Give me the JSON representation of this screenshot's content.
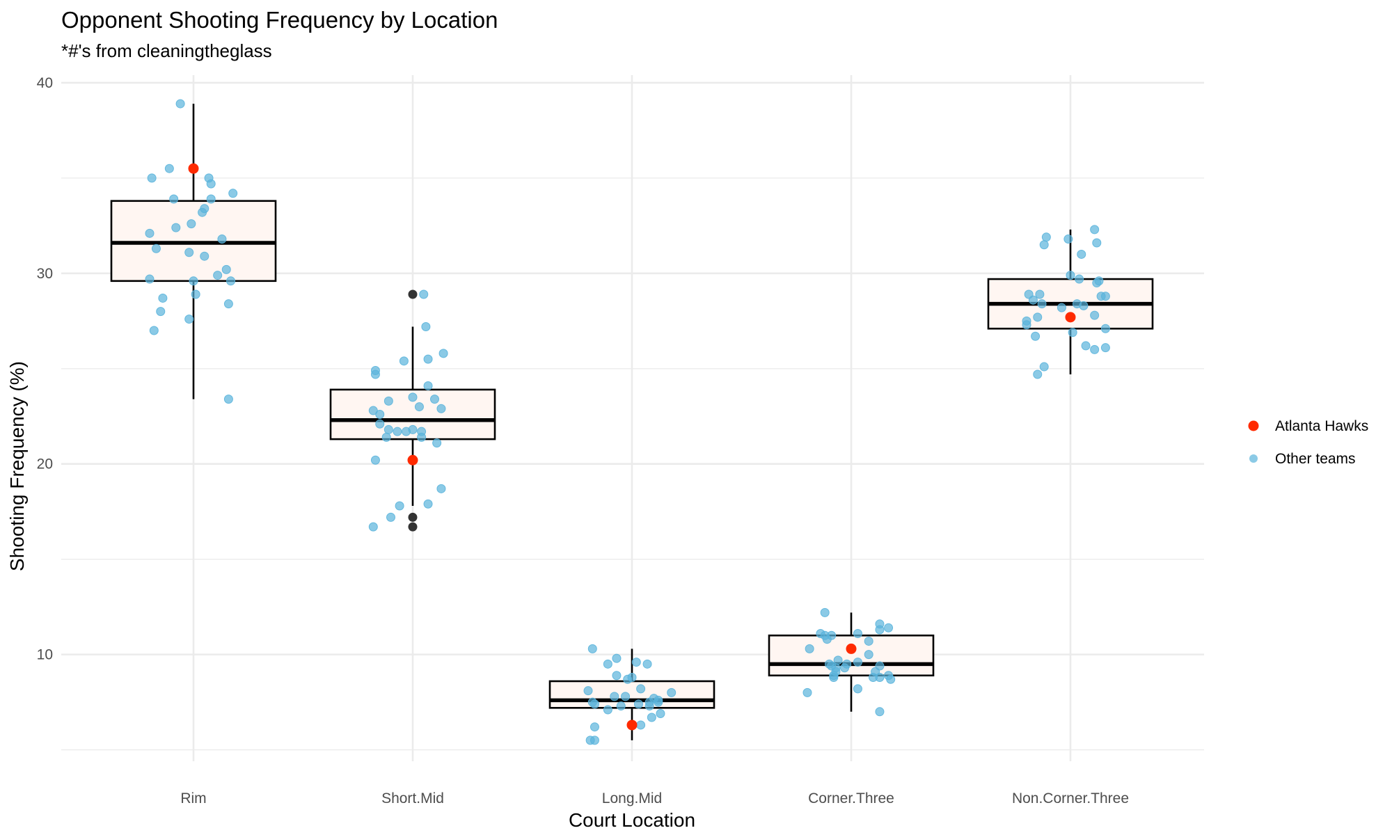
{
  "chart_data": {
    "type": "box",
    "title": "Opponent Shooting Frequency by Location",
    "subtitle": "*#'s from cleaningtheglass",
    "xlabel": "Court Location",
    "ylabel": "Shooting Frequency (%)",
    "ylim": [
      4.4,
      40.4
    ],
    "yticks": [
      10,
      20,
      30,
      40
    ],
    "grid": true,
    "legend_position": "right",
    "categories": [
      "Rim",
      "Short.Mid",
      "Long.Mid",
      "Corner.Three",
      "Non.Corner.Three"
    ],
    "boxes": [
      {
        "category": "Rim",
        "lower_whisker": 23.4,
        "q1": 29.6,
        "median": 31.6,
        "q3": 33.8,
        "upper_whisker": 38.9,
        "outliers": []
      },
      {
        "category": "Short.Mid",
        "lower_whisker": 17.8,
        "q1": 21.3,
        "median": 22.3,
        "q3": 23.9,
        "upper_whisker": 27.2,
        "outliers": [
          28.9,
          17.2,
          16.7
        ]
      },
      {
        "category": "Long.Mid",
        "lower_whisker": 5.5,
        "q1": 7.2,
        "median": 7.6,
        "q3": 8.6,
        "upper_whisker": 10.3,
        "outliers": []
      },
      {
        "category": "Corner.Three",
        "lower_whisker": 7.0,
        "q1": 8.9,
        "median": 9.5,
        "q3": 11.0,
        "upper_whisker": 12.2,
        "outliers": []
      },
      {
        "category": "Non.Corner.Three",
        "lower_whisker": 24.7,
        "q1": 27.1,
        "median": 28.4,
        "q3": 29.7,
        "upper_whisker": 32.3,
        "outliers": []
      }
    ],
    "series": [
      {
        "name": "Atlanta Hawks",
        "color": "#ff2a00",
        "points": [
          {
            "category": "Rim",
            "offset": 0.0,
            "y": 35.5
          },
          {
            "category": "Short.Mid",
            "offset": 0.0,
            "y": 20.2
          },
          {
            "category": "Long.Mid",
            "offset": 0.0,
            "y": 6.3
          },
          {
            "category": "Corner.Three",
            "offset": 0.0,
            "y": 10.3
          },
          {
            "category": "Non.Corner.Three",
            "offset": 0.0,
            "y": 27.7
          }
        ]
      },
      {
        "name": "Other teams",
        "color": "#5ab4dc",
        "points": [
          {
            "category": "Rim",
            "offset": -0.06,
            "y": 38.9
          },
          {
            "category": "Rim",
            "offset": -0.11,
            "y": 35.5
          },
          {
            "category": "Rim",
            "offset": -0.19,
            "y": 35.0
          },
          {
            "category": "Rim",
            "offset": 0.07,
            "y": 35.0
          },
          {
            "category": "Rim",
            "offset": 0.08,
            "y": 34.7
          },
          {
            "category": "Rim",
            "offset": 0.18,
            "y": 34.2
          },
          {
            "category": "Rim",
            "offset": -0.09,
            "y": 33.9
          },
          {
            "category": "Rim",
            "offset": 0.08,
            "y": 33.9
          },
          {
            "category": "Rim",
            "offset": 0.05,
            "y": 33.4
          },
          {
            "category": "Rim",
            "offset": 0.04,
            "y": 33.2
          },
          {
            "category": "Rim",
            "offset": -0.01,
            "y": 32.6
          },
          {
            "category": "Rim",
            "offset": -0.08,
            "y": 32.4
          },
          {
            "category": "Rim",
            "offset": -0.2,
            "y": 32.1
          },
          {
            "category": "Rim",
            "offset": 0.13,
            "y": 31.8
          },
          {
            "category": "Rim",
            "offset": -0.17,
            "y": 31.3
          },
          {
            "category": "Rim",
            "offset": -0.02,
            "y": 31.1
          },
          {
            "category": "Rim",
            "offset": 0.05,
            "y": 30.9
          },
          {
            "category": "Rim",
            "offset": 0.15,
            "y": 30.2
          },
          {
            "category": "Rim",
            "offset": 0.11,
            "y": 29.9
          },
          {
            "category": "Rim",
            "offset": -0.2,
            "y": 29.7
          },
          {
            "category": "Rim",
            "offset": 0.0,
            "y": 29.6
          },
          {
            "category": "Rim",
            "offset": 0.17,
            "y": 29.6
          },
          {
            "category": "Rim",
            "offset": 0.01,
            "y": 28.9
          },
          {
            "category": "Rim",
            "offset": -0.14,
            "y": 28.7
          },
          {
            "category": "Rim",
            "offset": 0.16,
            "y": 28.4
          },
          {
            "category": "Rim",
            "offset": -0.15,
            "y": 28.0
          },
          {
            "category": "Rim",
            "offset": -0.02,
            "y": 27.6
          },
          {
            "category": "Rim",
            "offset": -0.18,
            "y": 27.0
          },
          {
            "category": "Rim",
            "offset": 0.16,
            "y": 23.4
          },
          {
            "category": "Short.Mid",
            "offset": 0.05,
            "y": 28.9
          },
          {
            "category": "Short.Mid",
            "offset": 0.06,
            "y": 27.2
          },
          {
            "category": "Short.Mid",
            "offset": 0.14,
            "y": 25.8
          },
          {
            "category": "Short.Mid",
            "offset": 0.07,
            "y": 25.5
          },
          {
            "category": "Short.Mid",
            "offset": -0.04,
            "y": 25.4
          },
          {
            "category": "Short.Mid",
            "offset": -0.17,
            "y": 24.9
          },
          {
            "category": "Short.Mid",
            "offset": -0.17,
            "y": 24.7
          },
          {
            "category": "Short.Mid",
            "offset": 0.07,
            "y": 24.1
          },
          {
            "category": "Short.Mid",
            "offset": 0.0,
            "y": 23.5
          },
          {
            "category": "Short.Mid",
            "offset": 0.1,
            "y": 23.4
          },
          {
            "category": "Short.Mid",
            "offset": -0.11,
            "y": 23.3
          },
          {
            "category": "Short.Mid",
            "offset": 0.03,
            "y": 23.0
          },
          {
            "category": "Short.Mid",
            "offset": 0.13,
            "y": 22.9
          },
          {
            "category": "Short.Mid",
            "offset": -0.18,
            "y": 22.8
          },
          {
            "category": "Short.Mid",
            "offset": -0.15,
            "y": 22.6
          },
          {
            "category": "Short.Mid",
            "offset": -0.15,
            "y": 22.1
          },
          {
            "category": "Short.Mid",
            "offset": -0.11,
            "y": 21.8
          },
          {
            "category": "Short.Mid",
            "offset": 0.0,
            "y": 21.8
          },
          {
            "category": "Short.Mid",
            "offset": -0.03,
            "y": 21.7
          },
          {
            "category": "Short.Mid",
            "offset": -0.07,
            "y": 21.7
          },
          {
            "category": "Short.Mid",
            "offset": 0.04,
            "y": 21.7
          },
          {
            "category": "Short.Mid",
            "offset": -0.12,
            "y": 21.4
          },
          {
            "category": "Short.Mid",
            "offset": 0.04,
            "y": 21.4
          },
          {
            "category": "Short.Mid",
            "offset": 0.11,
            "y": 21.1
          },
          {
            "category": "Short.Mid",
            "offset": -0.17,
            "y": 20.2
          },
          {
            "category": "Short.Mid",
            "offset": 0.13,
            "y": 18.7
          },
          {
            "category": "Short.Mid",
            "offset": 0.07,
            "y": 17.9
          },
          {
            "category": "Short.Mid",
            "offset": -0.06,
            "y": 17.8
          },
          {
            "category": "Short.Mid",
            "offset": -0.1,
            "y": 17.2
          },
          {
            "category": "Short.Mid",
            "offset": -0.18,
            "y": 16.7
          },
          {
            "category": "Long.Mid",
            "offset": -0.18,
            "y": 10.3
          },
          {
            "category": "Long.Mid",
            "offset": -0.07,
            "y": 9.8
          },
          {
            "category": "Long.Mid",
            "offset": 0.02,
            "y": 9.6
          },
          {
            "category": "Long.Mid",
            "offset": -0.11,
            "y": 9.5
          },
          {
            "category": "Long.Mid",
            "offset": 0.07,
            "y": 9.5
          },
          {
            "category": "Long.Mid",
            "offset": -0.07,
            "y": 8.9
          },
          {
            "category": "Long.Mid",
            "offset": 0.0,
            "y": 8.8
          },
          {
            "category": "Long.Mid",
            "offset": -0.02,
            "y": 8.7
          },
          {
            "category": "Long.Mid",
            "offset": 0.04,
            "y": 8.2
          },
          {
            "category": "Long.Mid",
            "offset": -0.2,
            "y": 8.1
          },
          {
            "category": "Long.Mid",
            "offset": 0.18,
            "y": 8.0
          },
          {
            "category": "Long.Mid",
            "offset": -0.08,
            "y": 7.8
          },
          {
            "category": "Long.Mid",
            "offset": -0.03,
            "y": 7.8
          },
          {
            "category": "Long.Mid",
            "offset": 0.1,
            "y": 7.7
          },
          {
            "category": "Long.Mid",
            "offset": 0.12,
            "y": 7.6
          },
          {
            "category": "Long.Mid",
            "offset": -0.18,
            "y": 7.5
          },
          {
            "category": "Long.Mid",
            "offset": 0.08,
            "y": 7.5
          },
          {
            "category": "Long.Mid",
            "offset": 0.12,
            "y": 7.5
          },
          {
            "category": "Long.Mid",
            "offset": -0.17,
            "y": 7.4
          },
          {
            "category": "Long.Mid",
            "offset": 0.03,
            "y": 7.4
          },
          {
            "category": "Long.Mid",
            "offset": -0.05,
            "y": 7.3
          },
          {
            "category": "Long.Mid",
            "offset": 0.08,
            "y": 7.3
          },
          {
            "category": "Long.Mid",
            "offset": -0.11,
            "y": 7.1
          },
          {
            "category": "Long.Mid",
            "offset": 0.13,
            "y": 6.9
          },
          {
            "category": "Long.Mid",
            "offset": 0.09,
            "y": 6.7
          },
          {
            "category": "Long.Mid",
            "offset": 0.04,
            "y": 6.3
          },
          {
            "category": "Long.Mid",
            "offset": -0.17,
            "y": 6.2
          },
          {
            "category": "Long.Mid",
            "offset": -0.17,
            "y": 5.5
          },
          {
            "category": "Long.Mid",
            "offset": -0.19,
            "y": 5.5
          },
          {
            "category": "Corner.Three",
            "offset": -0.12,
            "y": 12.2
          },
          {
            "category": "Corner.Three",
            "offset": 0.13,
            "y": 11.6
          },
          {
            "category": "Corner.Three",
            "offset": 0.17,
            "y": 11.4
          },
          {
            "category": "Corner.Three",
            "offset": 0.13,
            "y": 11.3
          },
          {
            "category": "Corner.Three",
            "offset": -0.14,
            "y": 11.1
          },
          {
            "category": "Corner.Three",
            "offset": 0.03,
            "y": 11.1
          },
          {
            "category": "Corner.Three",
            "offset": -0.12,
            "y": 11.0
          },
          {
            "category": "Corner.Three",
            "offset": -0.09,
            "y": 11.0
          },
          {
            "category": "Corner.Three",
            "offset": -0.11,
            "y": 10.8
          },
          {
            "category": "Corner.Three",
            "offset": 0.08,
            "y": 10.7
          },
          {
            "category": "Corner.Three",
            "offset": -0.19,
            "y": 10.3
          },
          {
            "category": "Corner.Three",
            "offset": 0.08,
            "y": 10.0
          },
          {
            "category": "Corner.Three",
            "offset": -0.06,
            "y": 9.7
          },
          {
            "category": "Corner.Three",
            "offset": 0.03,
            "y": 9.6
          },
          {
            "category": "Corner.Three",
            "offset": -0.1,
            "y": 9.5
          },
          {
            "category": "Corner.Three",
            "offset": -0.02,
            "y": 9.5
          },
          {
            "category": "Corner.Three",
            "offset": -0.09,
            "y": 9.4
          },
          {
            "category": "Corner.Three",
            "offset": 0.13,
            "y": 9.4
          },
          {
            "category": "Corner.Three",
            "offset": -0.07,
            "y": 9.3
          },
          {
            "category": "Corner.Three",
            "offset": -0.03,
            "y": 9.3
          },
          {
            "category": "Corner.Three",
            "offset": -0.07,
            "y": 9.1
          },
          {
            "category": "Corner.Three",
            "offset": 0.11,
            "y": 9.1
          },
          {
            "category": "Corner.Three",
            "offset": -0.08,
            "y": 8.9
          },
          {
            "category": "Corner.Three",
            "offset": 0.17,
            "y": 8.9
          },
          {
            "category": "Corner.Three",
            "offset": -0.08,
            "y": 8.8
          },
          {
            "category": "Corner.Three",
            "offset": 0.1,
            "y": 8.8
          },
          {
            "category": "Corner.Three",
            "offset": 0.13,
            "y": 8.8
          },
          {
            "category": "Corner.Three",
            "offset": 0.18,
            "y": 8.7
          },
          {
            "category": "Corner.Three",
            "offset": 0.03,
            "y": 8.2
          },
          {
            "category": "Corner.Three",
            "offset": -0.2,
            "y": 8.0
          },
          {
            "category": "Corner.Three",
            "offset": 0.13,
            "y": 7.0
          },
          {
            "category": "Non.Corner.Three",
            "offset": 0.11,
            "y": 32.3
          },
          {
            "category": "Non.Corner.Three",
            "offset": -0.11,
            "y": 31.9
          },
          {
            "category": "Non.Corner.Three",
            "offset": -0.01,
            "y": 31.8
          },
          {
            "category": "Non.Corner.Three",
            "offset": 0.12,
            "y": 31.6
          },
          {
            "category": "Non.Corner.Three",
            "offset": -0.12,
            "y": 31.5
          },
          {
            "category": "Non.Corner.Three",
            "offset": 0.05,
            "y": 31.0
          },
          {
            "category": "Non.Corner.Three",
            "offset": 0.0,
            "y": 29.9
          },
          {
            "category": "Non.Corner.Three",
            "offset": 0.04,
            "y": 29.7
          },
          {
            "category": "Non.Corner.Three",
            "offset": 0.13,
            "y": 29.6
          },
          {
            "category": "Non.Corner.Three",
            "offset": 0.12,
            "y": 29.5
          },
          {
            "category": "Non.Corner.Three",
            "offset": -0.19,
            "y": 28.9
          },
          {
            "category": "Non.Corner.Three",
            "offset": -0.14,
            "y": 28.9
          },
          {
            "category": "Non.Corner.Three",
            "offset": 0.14,
            "y": 28.8
          },
          {
            "category": "Non.Corner.Three",
            "offset": 0.16,
            "y": 28.8
          },
          {
            "category": "Non.Corner.Three",
            "offset": -0.17,
            "y": 28.6
          },
          {
            "category": "Non.Corner.Three",
            "offset": -0.13,
            "y": 28.4
          },
          {
            "category": "Non.Corner.Three",
            "offset": 0.03,
            "y": 28.4
          },
          {
            "category": "Non.Corner.Three",
            "offset": 0.06,
            "y": 28.3
          },
          {
            "category": "Non.Corner.Three",
            "offset": -0.04,
            "y": 28.2
          },
          {
            "category": "Non.Corner.Three",
            "offset": 0.11,
            "y": 27.8
          },
          {
            "category": "Non.Corner.Three",
            "offset": -0.15,
            "y": 27.7
          },
          {
            "category": "Non.Corner.Three",
            "offset": -0.2,
            "y": 27.5
          },
          {
            "category": "Non.Corner.Three",
            "offset": -0.2,
            "y": 27.3
          },
          {
            "category": "Non.Corner.Three",
            "offset": 0.16,
            "y": 27.1
          },
          {
            "category": "Non.Corner.Three",
            "offset": 0.01,
            "y": 26.9
          },
          {
            "category": "Non.Corner.Three",
            "offset": -0.16,
            "y": 26.7
          },
          {
            "category": "Non.Corner.Three",
            "offset": 0.07,
            "y": 26.2
          },
          {
            "category": "Non.Corner.Three",
            "offset": 0.16,
            "y": 26.1
          },
          {
            "category": "Non.Corner.Three",
            "offset": 0.11,
            "y": 26.0
          },
          {
            "category": "Non.Corner.Three",
            "offset": -0.12,
            "y": 25.1
          },
          {
            "category": "Non.Corner.Three",
            "offset": -0.15,
            "y": 24.7
          }
        ]
      }
    ]
  }
}
